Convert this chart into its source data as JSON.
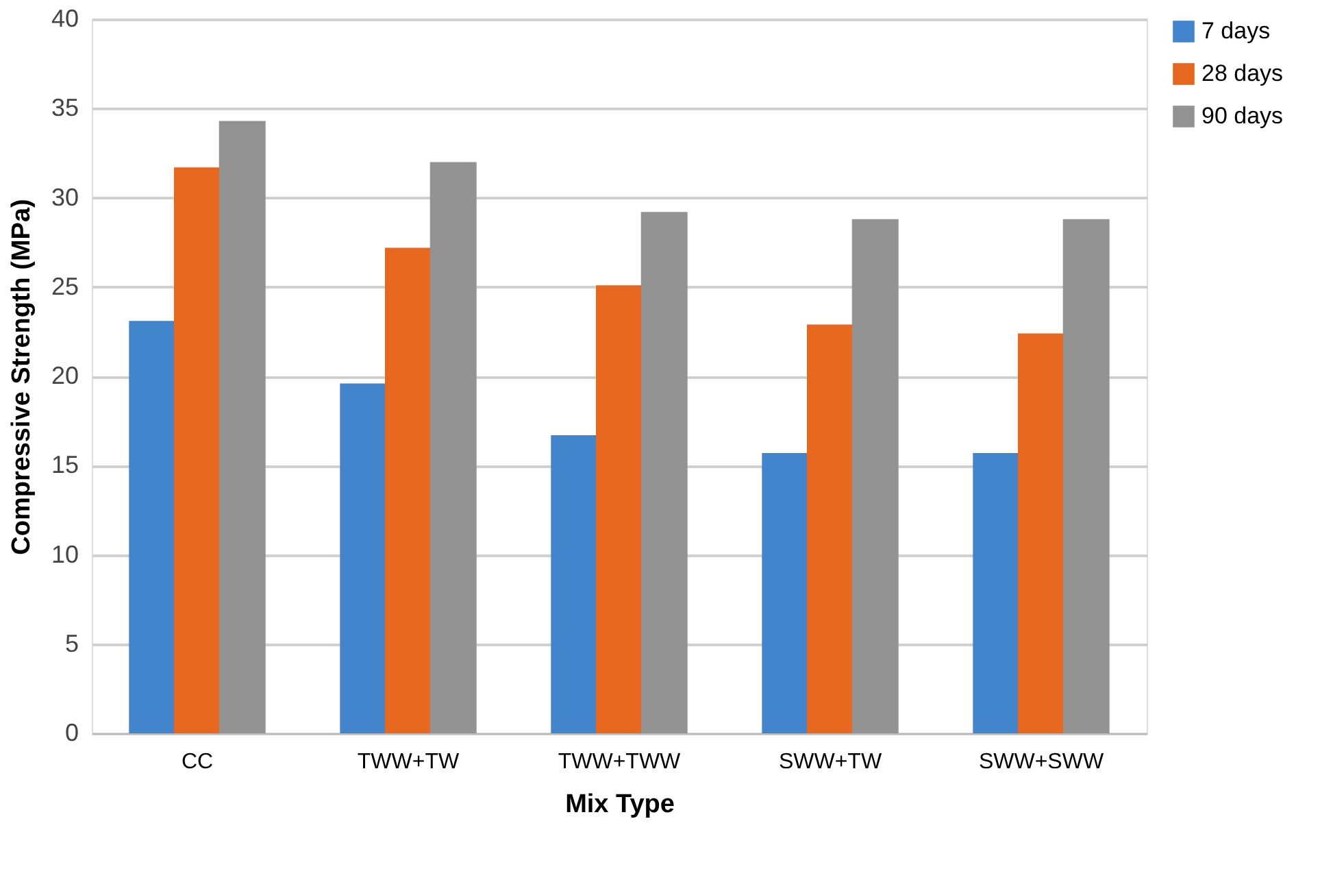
{
  "chart_data": {
    "type": "bar",
    "xlabel": "Mix Type",
    "ylabel": "Compressive Strength (MPa)",
    "categories": [
      "CC",
      "TWW+TW",
      "TWW+TWW",
      "SWW+TW",
      "SWW+SWW"
    ],
    "series": [
      {
        "name": "7 days",
        "color": "#4285cc",
        "values": [
          23.1,
          19.6,
          16.7,
          15.7,
          15.7
        ]
      },
      {
        "name": "28 days",
        "color": "#e8671e",
        "values": [
          31.7,
          27.2,
          25.1,
          22.9,
          22.4
        ]
      },
      {
        "name": "90 days",
        "color": "#939393",
        "values": [
          34.3,
          32.0,
          29.2,
          28.8,
          28.8
        ]
      }
    ],
    "ylim": [
      0,
      40
    ],
    "yticks": [
      0,
      5,
      10,
      15,
      20,
      25,
      30,
      35,
      40
    ],
    "grid": "y",
    "legend": "right"
  }
}
